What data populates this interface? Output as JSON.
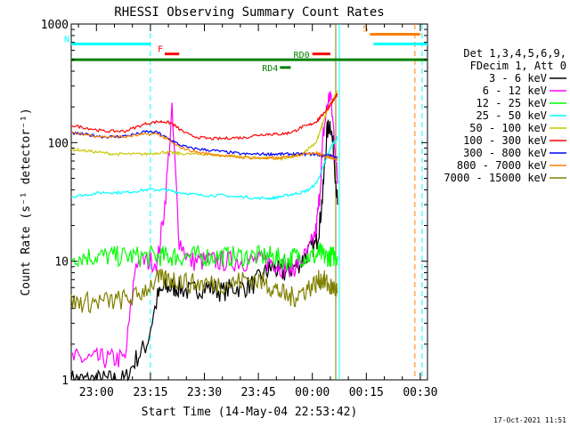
{
  "chart_data": {
    "type": "line",
    "title": "RHESSI Observing Summary Count Rates",
    "xlabel": "Start Time (14-May-04 22:53:42)",
    "ylabel": "Count Rate (s⁻¹ detector⁻¹)",
    "yscale": "log",
    "ylim": [
      1,
      1000
    ],
    "xlim_minutes": [
      -7,
      92
    ],
    "x_tick_labels": [
      "23:00",
      "23:15",
      "23:30",
      "23:45",
      "00:00",
      "00:15",
      "00:30"
    ],
    "x_tick_minutes": [
      0,
      15,
      30,
      45,
      60,
      75,
      90
    ],
    "y_tick_labels": [
      "1",
      "10",
      "100",
      "1000"
    ],
    "y_tick_values": [
      1,
      10,
      100,
      1000
    ],
    "grid": false,
    "legend_position": "right",
    "legend_header": [
      "Det 1,3,4,5,6,9,",
      "FDecim 1, Att 0"
    ],
    "timestamp": "17-Oct-2021 11:51",
    "annotations": [
      {
        "label": "N",
        "color": "#00ffff",
        "x0": -7,
        "x1": 15,
        "y": 680
      },
      {
        "label": "F",
        "color": "#ff0000",
        "x0": 19,
        "x1": 23,
        "y": 560
      },
      {
        "label": "RD0",
        "color": "#008000",
        "x0": -7,
        "x1": 92,
        "y": 500
      },
      {
        "label": "RD4",
        "color": "#008000",
        "x0": 51,
        "x1": 54,
        "y": 430
      },
      {
        "label": "F",
        "color": "#ff0000",
        "x0": 60,
        "x1": 65,
        "y": 560,
        "label_hidden": true
      },
      {
        "label": "S",
        "color": "#ff8000",
        "x0": 76,
        "x1": 90,
        "y": 820
      },
      {
        "label": "N",
        "color": "#00ffff",
        "x0": 77,
        "x1": 92,
        "y": 680,
        "label_hidden": true
      }
    ],
    "vlines": [
      {
        "x": 15,
        "color": "#00ffff",
        "dashed": true
      },
      {
        "x": 66.5,
        "color": "#808000",
        "dashed": false
      },
      {
        "x": 67.5,
        "color": "#00ffff",
        "dashed": false
      },
      {
        "x": 88.5,
        "color": "#ff8000",
        "dashed": true
      },
      {
        "x": 90.5,
        "color": "#00ffff",
        "dashed": true
      }
    ],
    "x": [
      -7,
      -4,
      -1,
      2,
      5,
      8,
      11,
      14,
      17,
      19,
      21,
      23,
      26,
      29,
      32,
      35,
      38,
      41,
      44,
      47,
      49,
      51,
      53,
      55,
      57,
      59,
      61,
      62,
      63,
      64,
      65,
      66,
      67
    ],
    "series": [
      {
        "name": "3 - 6 keV",
        "color": "#000000",
        "values": [
          1,
          1,
          1,
          1,
          1,
          1,
          1.5,
          2,
          5,
          6,
          6,
          6,
          5.5,
          6,
          6,
          5.5,
          6,
          6,
          6.5,
          8,
          9,
          8,
          8,
          9,
          10,
          12,
          14,
          20,
          40,
          120,
          150,
          80,
          30
        ]
      },
      {
        "name": "6 - 12 keV",
        "color": "#ff00ff",
        "values": [
          1.5,
          1.5,
          1.5,
          1.5,
          1.5,
          1.5,
          10,
          10,
          10,
          30,
          180,
          15,
          10,
          10,
          10,
          10,
          10,
          10,
          10,
          10,
          10,
          9,
          9,
          9,
          10,
          12,
          18,
          35,
          110,
          200,
          260,
          120,
          45
        ]
      },
      {
        "name": "12 - 25 keV",
        "color": "#00ff00",
        "values": [
          11,
          11,
          11,
          11,
          11,
          11,
          11,
          11,
          11,
          11,
          11,
          11,
          11,
          11,
          11,
          11,
          11,
          11,
          11,
          11,
          11,
          10.5,
          10,
          11,
          11,
          11,
          11,
          12,
          11,
          11,
          11,
          11,
          11
        ]
      },
      {
        "name": "25 - 50 keV",
        "color": "#00ffff",
        "values": [
          35,
          36,
          37,
          38,
          38,
          38,
          39,
          40,
          40,
          40,
          39,
          38,
          37,
          36,
          36,
          36,
          35,
          35,
          34,
          34,
          34,
          35,
          36,
          37,
          38,
          40,
          45,
          52,
          62,
          75,
          90,
          100,
          110
        ]
      },
      {
        "name": "50 - 100 keV",
        "color": "#c8c800",
        "values": [
          88,
          86,
          84,
          82,
          80,
          80,
          80,
          80,
          82,
          83,
          82,
          81,
          80,
          80,
          79,
          78,
          77,
          76,
          75,
          74,
          73,
          73,
          74,
          76,
          80,
          90,
          100,
          120,
          150,
          180,
          210,
          240,
          270
        ]
      },
      {
        "name": "100 - 300 keV",
        "color": "#ff0000",
        "values": [
          140,
          135,
          130,
          125,
          125,
          125,
          135,
          145,
          150,
          150,
          145,
          130,
          115,
          110,
          108,
          108,
          110,
          110,
          115,
          118,
          118,
          118,
          120,
          125,
          135,
          140,
          150,
          160,
          175,
          190,
          210,
          230,
          260
        ]
      },
      {
        "name": "300 - 800 keV",
        "color": "#0000ff",
        "values": [
          120,
          118,
          115,
          112,
          112,
          114,
          118,
          124,
          122,
          112,
          104,
          96,
          90,
          88,
          86,
          84,
          82,
          80,
          80,
          80,
          80,
          80,
          80,
          80,
          80,
          80,
          80,
          79,
          78,
          78,
          77,
          76,
          75
        ]
      },
      {
        "name": "800 - 7000 keV",
        "color": "#ff8000",
        "values": [
          120,
          118,
          115,
          112,
          112,
          112,
          115,
          118,
          118,
          110,
          100,
          92,
          86,
          82,
          80,
          78,
          76,
          75,
          74,
          74,
          74,
          74,
          76,
          78,
          80,
          82,
          82,
          80,
          78,
          76,
          75,
          74,
          72
        ]
      },
      {
        "name": "7000 - 15000 keV",
        "color": "#808000",
        "values": [
          4.5,
          4.5,
          4.5,
          4.6,
          4.6,
          4.8,
          5,
          6,
          7,
          7,
          7,
          7,
          6.5,
          6.5,
          6.5,
          6.5,
          6.5,
          7,
          7,
          6.5,
          6,
          5.5,
          5,
          5,
          5.5,
          6,
          6.5,
          7,
          7,
          6.5,
          6,
          6,
          5.5
        ]
      }
    ]
  }
}
